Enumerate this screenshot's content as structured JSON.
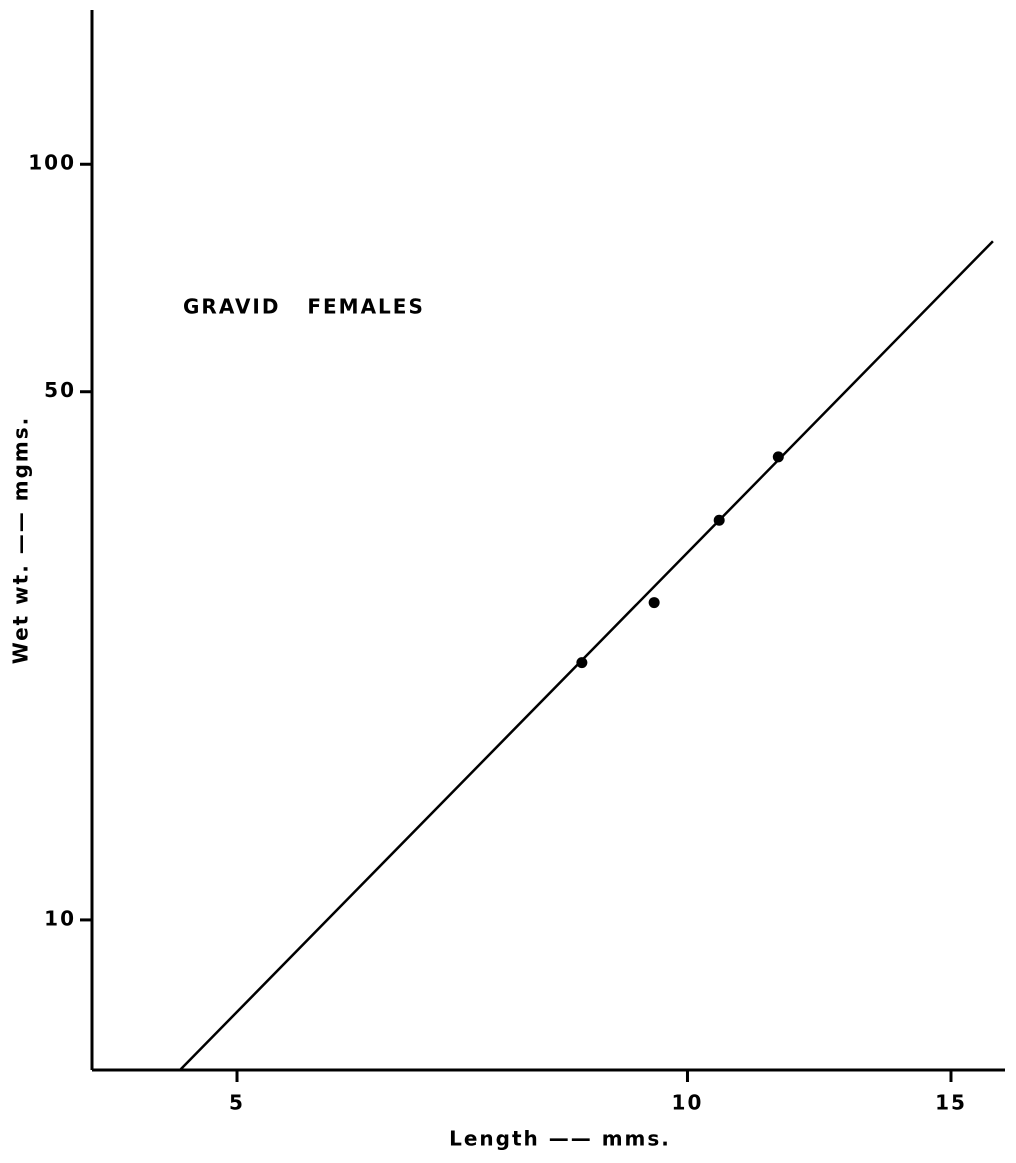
{
  "chart_data": {
    "type": "scatter",
    "xlabel": "Length —— mms.",
    "ylabel": "Wet wt. —— mgms.",
    "annotation": "GRAVID   FEMALES",
    "x_log": true,
    "y_log": true,
    "xlim": [
      4.0,
      16.3
    ],
    "ylim": [
      6.33,
      160
    ],
    "xticks": [
      5,
      10,
      15
    ],
    "yticks": [
      10,
      50,
      100
    ],
    "color": "#000000",
    "x": [
      8.5,
      9.5,
      10.5,
      11.5
    ],
    "y": [
      21.9,
      26.3,
      33.8,
      41
    ],
    "fit": {
      "x": [
        4.58,
        16.0
      ],
      "y": [
        6.33,
        79.1
      ]
    }
  }
}
